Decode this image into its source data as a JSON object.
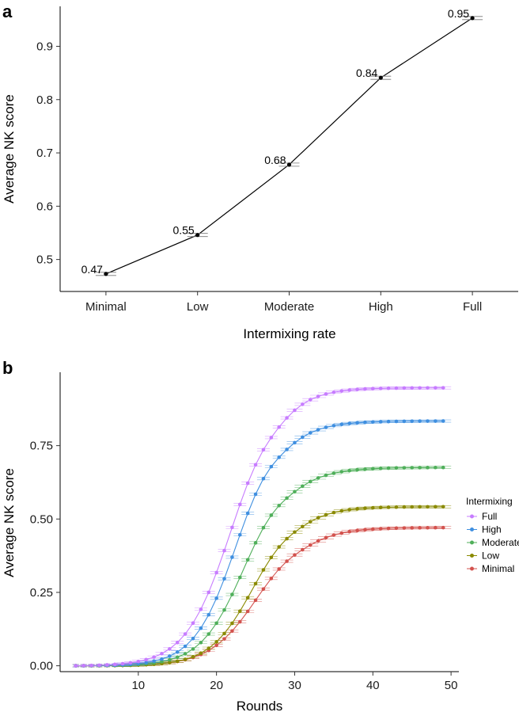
{
  "chart_data": [
    {
      "panel_label": "a",
      "type": "line",
      "xlabel": "Intermixing rate",
      "ylabel": "Average NK score",
      "categories": [
        "Minimal",
        "Low",
        "Moderate",
        "High",
        "Full"
      ],
      "values": [
        0.473,
        0.546,
        0.678,
        0.841,
        0.953
      ],
      "data_labels": [
        "0.47",
        "0.55",
        "0.68",
        "0.84",
        "0.95"
      ],
      "ylim": [
        0.44,
        0.975
      ],
      "yticks": [
        0.5,
        0.6,
        0.7,
        0.8,
        0.9
      ],
      "ytick_labels": [
        "0.5",
        "0.6",
        "0.7",
        "0.8",
        "0.9"
      ],
      "error_bars": true,
      "grid": false,
      "color": "#000000"
    },
    {
      "panel_label": "b",
      "type": "line",
      "xlabel": "Rounds",
      "ylabel": "Average NK score",
      "xlim": [
        0,
        51
      ],
      "ylim": [
        -0.02,
        1.0
      ],
      "xticks": [
        10,
        20,
        30,
        40,
        50
      ],
      "xtick_labels": [
        "10",
        "20",
        "30",
        "40",
        "50"
      ],
      "yticks": [
        0.0,
        0.25,
        0.5,
        0.75
      ],
      "ytick_labels": [
        "0.00",
        "0.25",
        "0.50",
        "0.75"
      ],
      "x_range": [
        2,
        49
      ],
      "legend_title": "Intermixing",
      "legend_position": "right",
      "error_bars": true,
      "grid": false,
      "series": [
        {
          "name": "Full",
          "color": "#C77CFF",
          "final": 0.947,
          "midpoint": 22.0,
          "steepness": 0.34,
          "plateau_rate": 0.33
        },
        {
          "name": "High",
          "color": "#3F8FE0",
          "final": 0.834,
          "midpoint": 22.6,
          "steepness": 0.37,
          "plateau_rate": 0.26
        },
        {
          "name": "Moderate",
          "color": "#4FAF5A",
          "final": 0.676,
          "midpoint": 23.6,
          "steepness": 0.36,
          "plateau_rate": 0.24
        },
        {
          "name": "Low",
          "color": "#8A8A00",
          "final": 0.542,
          "midpoint": 24.8,
          "steepness": 0.36,
          "plateau_rate": 0.3
        },
        {
          "name": "Minimal",
          "color": "#D3524E",
          "final": 0.471,
          "midpoint": 25.3,
          "steepness": 0.33,
          "plateau_rate": 0.28
        }
      ]
    }
  ]
}
